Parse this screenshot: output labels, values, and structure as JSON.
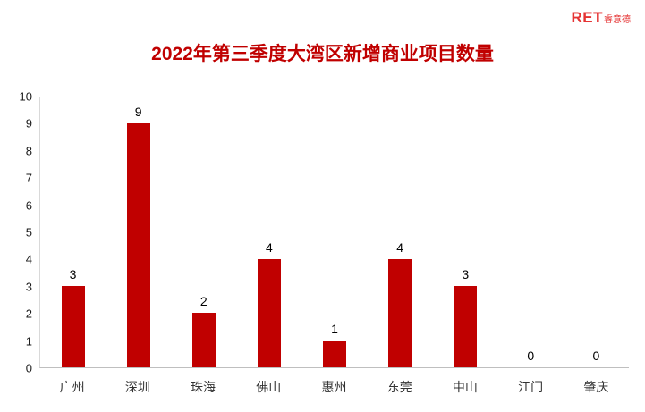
{
  "logo": {
    "ret": "RET",
    "suffix": "睿意德"
  },
  "colors": {
    "bar": "#c00000",
    "title": "#c00000",
    "logo": "#e53333",
    "axis_line": "#bfbfbf"
  },
  "chart_data": {
    "type": "bar",
    "title": "2022年第三季度大湾区新增商业项目数量",
    "categories": [
      "广州",
      "深圳",
      "珠海",
      "佛山",
      "惠州",
      "东莞",
      "中山",
      "江门",
      "肇庆"
    ],
    "values": [
      3,
      9,
      2,
      4,
      1,
      4,
      3,
      0,
      0
    ],
    "xlabel": "",
    "ylabel": "",
    "ylim": [
      0,
      10
    ],
    "yticks": [
      0,
      1,
      2,
      3,
      4,
      5,
      6,
      7,
      8,
      9,
      10
    ],
    "grid": false,
    "legend": false,
    "bar_color": "#c00000"
  }
}
